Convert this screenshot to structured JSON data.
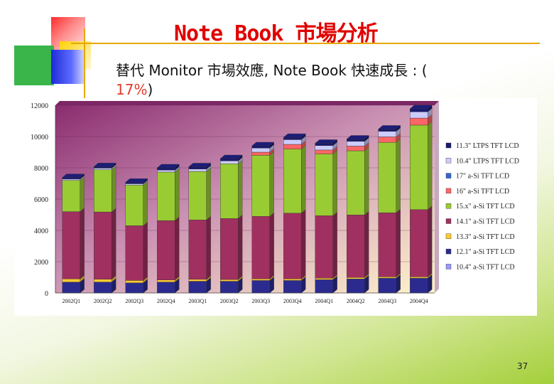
{
  "slide": {
    "title": "Note Book 市場分析",
    "subtitle_main": "替代 Monitor 市場效應, Note Book 快速成長 : (",
    "subtitle_highlight": "17%",
    "subtitle_end": ")",
    "page_number": "37"
  },
  "colors": {
    "title": "#e00000",
    "accent_line": "#e7a700"
  },
  "chart_data": {
    "type": "bar",
    "stacked": true,
    "categories": [
      "2002Q1",
      "2002Q2",
      "2002Q3",
      "2002Q4",
      "2003Q1",
      "2003Q2",
      "2003Q3",
      "2003Q4",
      "2004Q1",
      "2004Q2",
      "2004Q3",
      "2004Q4"
    ],
    "ylim": [
      0,
      12000
    ],
    "yticks": [
      0,
      2000,
      4000,
      6000,
      8000,
      10000,
      12000
    ],
    "ytick_labels": [
      "0",
      "2000",
      "4000",
      "6000",
      "8000",
      "10000",
      "12000"
    ],
    "legend_position": "right",
    "series": [
      {
        "name": "10.4\" a-Si TFT LCD",
        "color": "#9999ff",
        "values": [
          0,
          0,
          0,
          0,
          0,
          0,
          0,
          0,
          0,
          0,
          0,
          0
        ]
      },
      {
        "name": "12.1\" a-Si TFT LCD",
        "color": "#2b2b8f",
        "values": [
          700,
          700,
          650,
          700,
          750,
          750,
          800,
          800,
          850,
          900,
          950,
          950
        ]
      },
      {
        "name": "13.3\" a-Si TFT LCD",
        "color": "#ffcc33",
        "values": [
          200,
          180,
          150,
          130,
          120,
          110,
          100,
          100,
          90,
          90,
          80,
          80
        ]
      },
      {
        "name": "14.1\" a-Si TFT LCD",
        "color": "#a0305f",
        "values": [
          4300,
          4300,
          3500,
          3800,
          3800,
          3900,
          4000,
          4200,
          4000,
          4000,
          4100,
          4300
        ]
      },
      {
        "name": "15.x\" a-Si TFT LCD",
        "color": "#99cc33",
        "values": [
          2000,
          2700,
          2600,
          3100,
          3100,
          3500,
          3900,
          4100,
          3950,
          4100,
          4500,
          5400
        ]
      },
      {
        "name": "16\" a-Si TFT LCD",
        "color": "#ff6666",
        "values": [
          0,
          0,
          0,
          0,
          0,
          0,
          200,
          300,
          250,
          300,
          350,
          450
        ]
      },
      {
        "name": "17\" a-Si TFT LCD",
        "color": "#3366cc",
        "values": [
          0,
          0,
          0,
          0,
          0,
          0,
          0,
          0,
          0,
          0,
          0,
          0
        ]
      },
      {
        "name": "10.4\" LTPS TFT LCD",
        "color": "#ccccff",
        "values": [
          80,
          100,
          80,
          120,
          150,
          180,
          260,
          300,
          280,
          300,
          350,
          400
        ]
      },
      {
        "name": "11.3\" LTPS TFT LCD",
        "color": "#1a1a6e",
        "values": [
          100,
          100,
          100,
          150,
          150,
          150,
          150,
          150,
          150,
          150,
          150,
          200
        ]
      }
    ]
  }
}
